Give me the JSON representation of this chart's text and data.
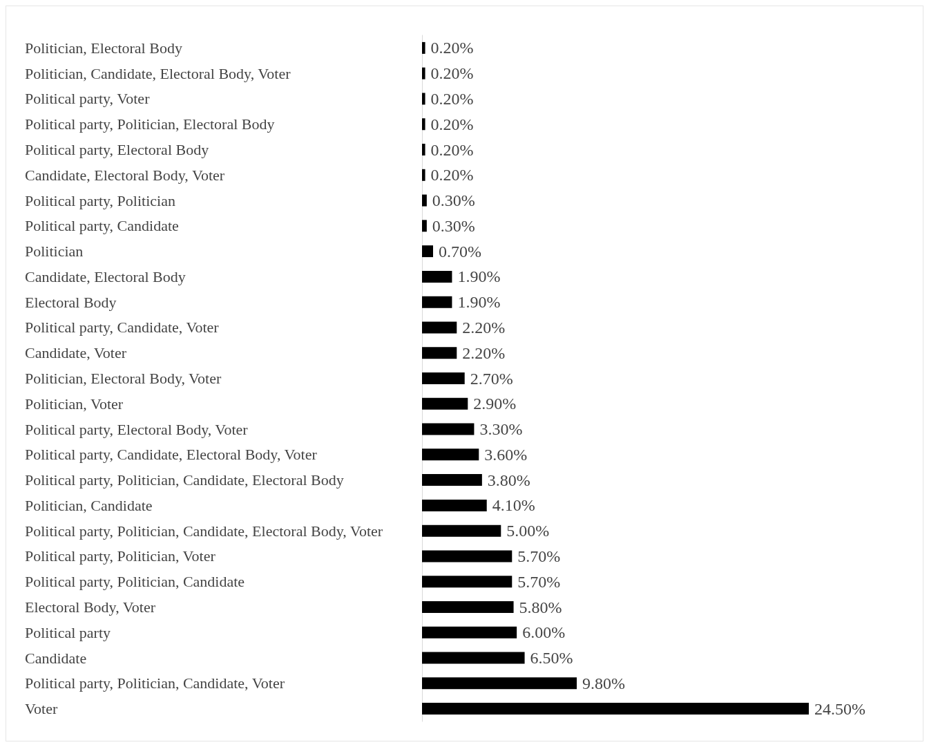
{
  "chart_data": {
    "type": "bar",
    "orientation": "horizontal",
    "tick_labels": "y",
    "color": "#000000",
    "categories": [
      "Politician, Electoral Body",
      "Politician, Candidate, Electoral Body, Voter",
      "Political party, Voter",
      "Political party, Politician, Electoral Body",
      "Political party, Electoral Body",
      "Candidate, Electoral Body, Voter",
      "Political party, Politician",
      "Political party, Candidate",
      "Politician",
      "Candidate, Electoral Body",
      "Electoral Body",
      "Political party, Candidate, Voter",
      "Candidate, Voter",
      "Politician, Electoral Body, Voter",
      "Politician, Voter",
      "Political party, Electoral Body, Voter",
      "Political party, Candidate, Electoral Body, Voter",
      "Political party, Politician, Candidate, Electoral Body",
      "Politician, Candidate",
      "Political party, Politician, Candidate, Electoral Body, Voter",
      "Political party, Politician, Voter",
      "Political party, Politician, Candidate",
      "Electoral Body, Voter",
      "Political party",
      "Candidate",
      "Political party, Politician, Candidate, Voter",
      "Voter"
    ],
    "values": [
      0.2,
      0.2,
      0.2,
      0.2,
      0.2,
      0.2,
      0.3,
      0.3,
      0.7,
      1.9,
      1.9,
      2.2,
      2.2,
      2.7,
      2.9,
      3.3,
      3.6,
      3.8,
      4.1,
      5.0,
      5.7,
      5.7,
      5.8,
      6.0,
      6.5,
      9.8,
      24.5
    ],
    "value_labels": [
      "0.20%",
      "0.20%",
      "0.20%",
      "0.20%",
      "0.20%",
      "0.20%",
      "0.30%",
      "0.30%",
      "0.70%",
      "1.90%",
      "1.90%",
      "2.20%",
      "2.20%",
      "2.70%",
      "2.90%",
      "3.30%",
      "3.60%",
      "3.80%",
      "4.10%",
      "5.00%",
      "5.70%",
      "5.70%",
      "5.80%",
      "6.00%",
      "6.50%",
      "9.80%",
      "24.50%"
    ]
  }
}
